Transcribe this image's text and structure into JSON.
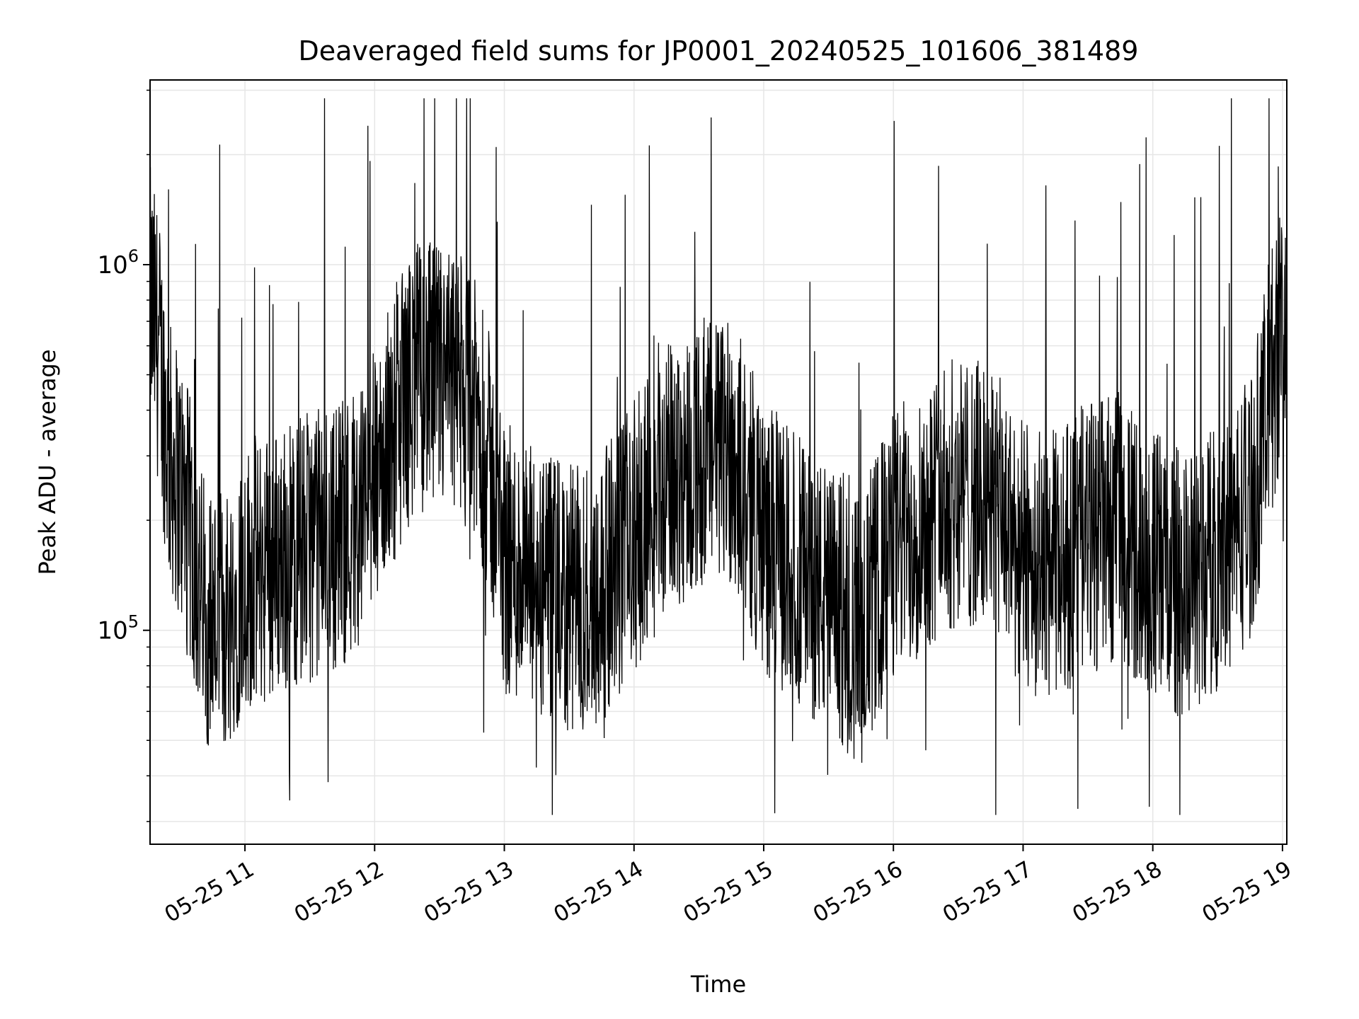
{
  "chart_data": {
    "type": "line",
    "title": "Deaveraged field sums for JP0001_20240525_101606_381489",
    "xlabel": "Time",
    "ylabel": "Peak ADU - average",
    "x_range": [
      "2024-05-25 10:16:06",
      "2024-05-25 19:02:00"
    ],
    "yscale": "log",
    "ylim": [
      26000,
      3200000
    ],
    "grid": true,
    "line_color": "#000000",
    "grid_color": "#e6e6e6",
    "x_ticks": [
      {
        "time": "2024-05-25 11:00",
        "label": "05-25 11"
      },
      {
        "time": "2024-05-25 12:00",
        "label": "05-25 12"
      },
      {
        "time": "2024-05-25 13:00",
        "label": "05-25 13"
      },
      {
        "time": "2024-05-25 14:00",
        "label": "05-25 14"
      },
      {
        "time": "2024-05-25 15:00",
        "label": "05-25 15"
      },
      {
        "time": "2024-05-25 16:00",
        "label": "05-25 16"
      },
      {
        "time": "2024-05-25 17:00",
        "label": "05-25 17"
      },
      {
        "time": "2024-05-25 18:00",
        "label": "05-25 18"
      },
      {
        "time": "2024-05-25 19:00",
        "label": "05-25 19"
      }
    ],
    "y_major_ticks": [
      {
        "value": 100000,
        "base": "10",
        "exp": "5"
      },
      {
        "value": 1000000,
        "base": "10",
        "exp": "6"
      }
    ],
    "series": [
      {
        "x": [
          "2024-05-25 10:16",
          "2024-05-25 10:20",
          "2024-05-25 10:25",
          "2024-05-25 10:30",
          "2024-05-25 10:35",
          "2024-05-25 10:40",
          "2024-05-25 10:45",
          "2024-05-25 10:50",
          "2024-05-25 10:55",
          "2024-05-25 11:00",
          "2024-05-25 11:10",
          "2024-05-25 11:20",
          "2024-05-25 11:30",
          "2024-05-25 11:40",
          "2024-05-25 11:50",
          "2024-05-25 12:00",
          "2024-05-25 12:10",
          "2024-05-25 12:20",
          "2024-05-25 12:30",
          "2024-05-25 12:40",
          "2024-05-25 12:50",
          "2024-05-25 13:00",
          "2024-05-25 13:15",
          "2024-05-25 13:30",
          "2024-05-25 13:45",
          "2024-05-25 14:00",
          "2024-05-25 14:15",
          "2024-05-25 14:30",
          "2024-05-25 14:45",
          "2024-05-25 15:00",
          "2024-05-25 15:15",
          "2024-05-25 15:30",
          "2024-05-25 15:45",
          "2024-05-25 16:00",
          "2024-05-25 16:15",
          "2024-05-25 16:30",
          "2024-05-25 16:45",
          "2024-05-25 17:00",
          "2024-05-25 17:15",
          "2024-05-25 17:30",
          "2024-05-25 17:45",
          "2024-05-25 18:00",
          "2024-05-25 18:15",
          "2024-05-25 18:30",
          "2024-05-25 18:45",
          "2024-05-25 19:00"
        ],
        "y": [
          800000,
          600000,
          300000,
          250000,
          180000,
          120000,
          110000,
          105000,
          120000,
          140000,
          150000,
          160000,
          170000,
          180000,
          200000,
          250000,
          380000,
          500000,
          480000,
          450000,
          350000,
          160000,
          130000,
          120000,
          130000,
          180000,
          260000,
          300000,
          320000,
          180000,
          150000,
          120000,
          100000,
          170000,
          210000,
          240000,
          230000,
          160000,
          150000,
          180000,
          190000,
          150000,
          130000,
          160000,
          220000,
          700000
        ]
      }
    ]
  }
}
